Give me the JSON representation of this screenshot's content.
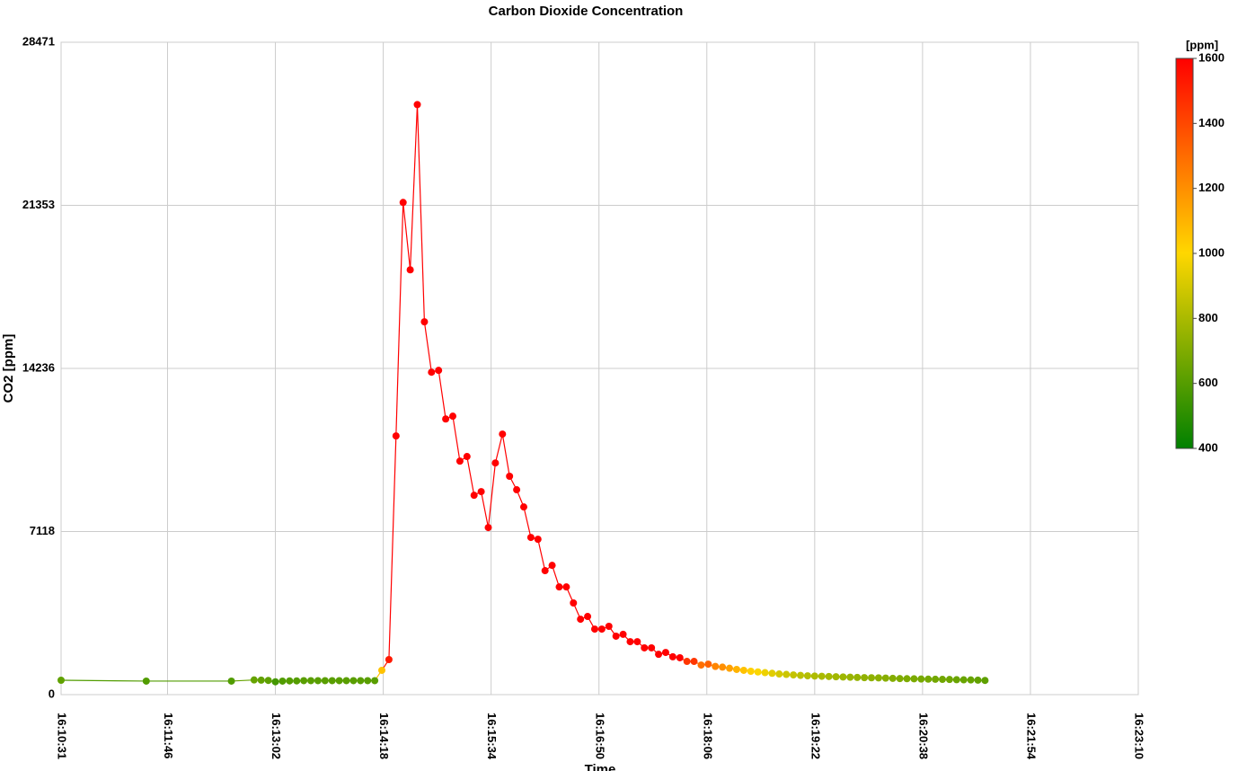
{
  "chart_data": {
    "type": "scatter",
    "title": "Carbon Dioxide Concentration",
    "x_label": "Time",
    "y_label": "CO2 [ppm]",
    "x": [
      "16:10:31",
      "16:11:31",
      "16:12:31",
      "16:12:47",
      "16:12:52",
      "16:12:57",
      "16:13:02",
      "16:13:07",
      "16:13:12",
      "16:13:17",
      "16:13:22",
      "16:13:27",
      "16:13:32",
      "16:13:37",
      "16:13:42",
      "16:13:47",
      "16:13:52",
      "16:13:57",
      "16:14:02",
      "16:14:07",
      "16:14:12",
      "16:14:17",
      "16:14:22",
      "16:14:27",
      "16:14:32",
      "16:14:37",
      "16:14:42",
      "16:14:47",
      "16:14:52",
      "16:14:57",
      "16:15:02",
      "16:15:07",
      "16:15:12",
      "16:15:17",
      "16:15:22",
      "16:15:27",
      "16:15:32",
      "16:15:37",
      "16:15:42",
      "16:15:47",
      "16:15:52",
      "16:15:57",
      "16:16:02",
      "16:16:07",
      "16:16:12",
      "16:16:17",
      "16:16:22",
      "16:16:27",
      "16:16:32",
      "16:16:37",
      "16:16:42",
      "16:16:47",
      "16:16:52",
      "16:16:57",
      "16:17:02",
      "16:17:07",
      "16:17:12",
      "16:17:17",
      "16:17:22",
      "16:17:27",
      "16:17:32",
      "16:17:37",
      "16:17:42",
      "16:17:47",
      "16:17:52",
      "16:17:57",
      "16:18:02",
      "16:18:07",
      "16:18:12",
      "16:18:17",
      "16:18:22",
      "16:18:27",
      "16:18:32",
      "16:18:37",
      "16:18:42",
      "16:18:47",
      "16:18:52",
      "16:18:57",
      "16:19:02",
      "16:19:07",
      "16:19:12",
      "16:19:17",
      "16:19:22",
      "16:19:27",
      "16:19:32",
      "16:19:37",
      "16:19:42",
      "16:19:47",
      "16:19:52",
      "16:19:57",
      "16:20:02",
      "16:20:07",
      "16:20:12",
      "16:20:17",
      "16:20:22",
      "16:20:27",
      "16:20:32",
      "16:20:37",
      "16:20:42",
      "16:20:47",
      "16:20:52",
      "16:20:57",
      "16:21:02",
      "16:21:07",
      "16:21:12",
      "16:21:17",
      "16:21:22"
    ],
    "values": [
      627,
      590,
      590,
      640,
      630,
      620,
      560,
      590,
      600,
      600,
      610,
      610,
      610,
      610,
      610,
      610,
      610,
      610,
      610,
      610,
      610,
      1060,
      1530,
      11290,
      21480,
      18540,
      25750,
      16270,
      14070,
      14150,
      12030,
      12150,
      10190,
      10390,
      8700,
      8860,
      7290,
      10110,
      11370,
      9530,
      8940,
      8190,
      6860,
      6780,
      5410,
      5640,
      4700,
      4700,
      4000,
      3290,
      3410,
      2860,
      2860,
      2980,
      2550,
      2630,
      2310,
      2310,
      2040,
      2040,
      1760,
      1840,
      1650,
      1610,
      1450,
      1450,
      1290,
      1330,
      1230,
      1200,
      1150,
      1100,
      1060,
      1020,
      990,
      960,
      930,
      900,
      880,
      860,
      840,
      820,
      810,
      800,
      790,
      780,
      770,
      760,
      750,
      740,
      735,
      730,
      720,
      710,
      700,
      695,
      690,
      680,
      675,
      670,
      665,
      660,
      650,
      645,
      640,
      630,
      620
    ],
    "xlim": [
      "16:10:31",
      "16:23:10"
    ],
    "xticks": [
      "16:10:31",
      "16:11:46",
      "16:13:02",
      "16:14:18",
      "16:15:34",
      "16:16:50",
      "16:18:06",
      "16:19:22",
      "16:20:38",
      "16:21:54",
      "16:23:10"
    ],
    "ylim": [
      0,
      28471
    ],
    "yticks": [
      0,
      7118,
      14236,
      21353,
      28471
    ],
    "grid": true,
    "colorscale": {
      "title": "[ppm]",
      "lim": [
        400,
        1600
      ],
      "ticks": [
        400,
        600,
        800,
        1000,
        1200,
        1400,
        1600
      ],
      "stops": [
        {
          "value": 400,
          "color": "#008000"
        },
        {
          "value": 1000,
          "color": "#ffd700"
        },
        {
          "value": 1600,
          "color": "#ff0000"
        }
      ]
    }
  }
}
